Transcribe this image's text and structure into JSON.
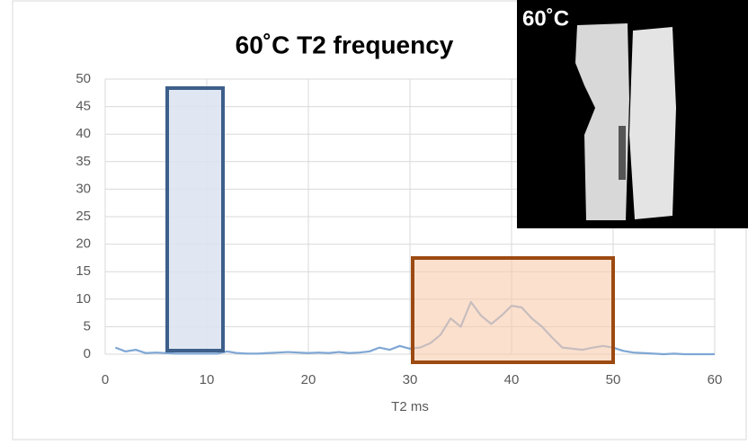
{
  "chart_data": {
    "type": "line",
    "title": "60˚C T2 frequency",
    "x_label": "T2 ms",
    "inset_label": "60˚C",
    "x": [
      1,
      2,
      3,
      4,
      5,
      6,
      7,
      8,
      9,
      10,
      11,
      12,
      13,
      14,
      15,
      16,
      17,
      18,
      19,
      20,
      21,
      22,
      23,
      24,
      25,
      26,
      27,
      28,
      29,
      30,
      31,
      32,
      33,
      34,
      35,
      36,
      37,
      38,
      39,
      40,
      41,
      42,
      43,
      44,
      45,
      46,
      47,
      48,
      49,
      50,
      51,
      52,
      53,
      54,
      55,
      56,
      57,
      58,
      59,
      60
    ],
    "series": [
      {
        "name": "frequency",
        "color": "#7fa7d4",
        "values": [
          1.2,
          0.5,
          0.8,
          0.2,
          0.3,
          0.2,
          0.1,
          0.1,
          0.1,
          0.1,
          0.1,
          0.5,
          0.2,
          0.1,
          0.1,
          0.2,
          0.3,
          0.4,
          0.3,
          0.2,
          0.3,
          0.2,
          0.4,
          0.2,
          0.3,
          0.5,
          1.2,
          0.8,
          1.5,
          1.0,
          1.2,
          2,
          3.5,
          6.5,
          5,
          9.5,
          7,
          5.5,
          7,
          8.8,
          8.5,
          6.5,
          5,
          3,
          1.2,
          1,
          0.8,
          1.2,
          1.5,
          1.2,
          0.6,
          0.3,
          0.2,
          0.1,
          0,
          0.1,
          0,
          0,
          0,
          0
        ]
      }
    ],
    "xlim": [
      0,
      60
    ],
    "xticks": [
      0,
      10,
      20,
      30,
      40,
      50,
      60
    ],
    "ylim": [
      0,
      50
    ],
    "yticks": [
      0,
      5,
      10,
      15,
      20,
      25,
      30,
      35,
      40,
      45,
      50
    ],
    "grid": true
  }
}
